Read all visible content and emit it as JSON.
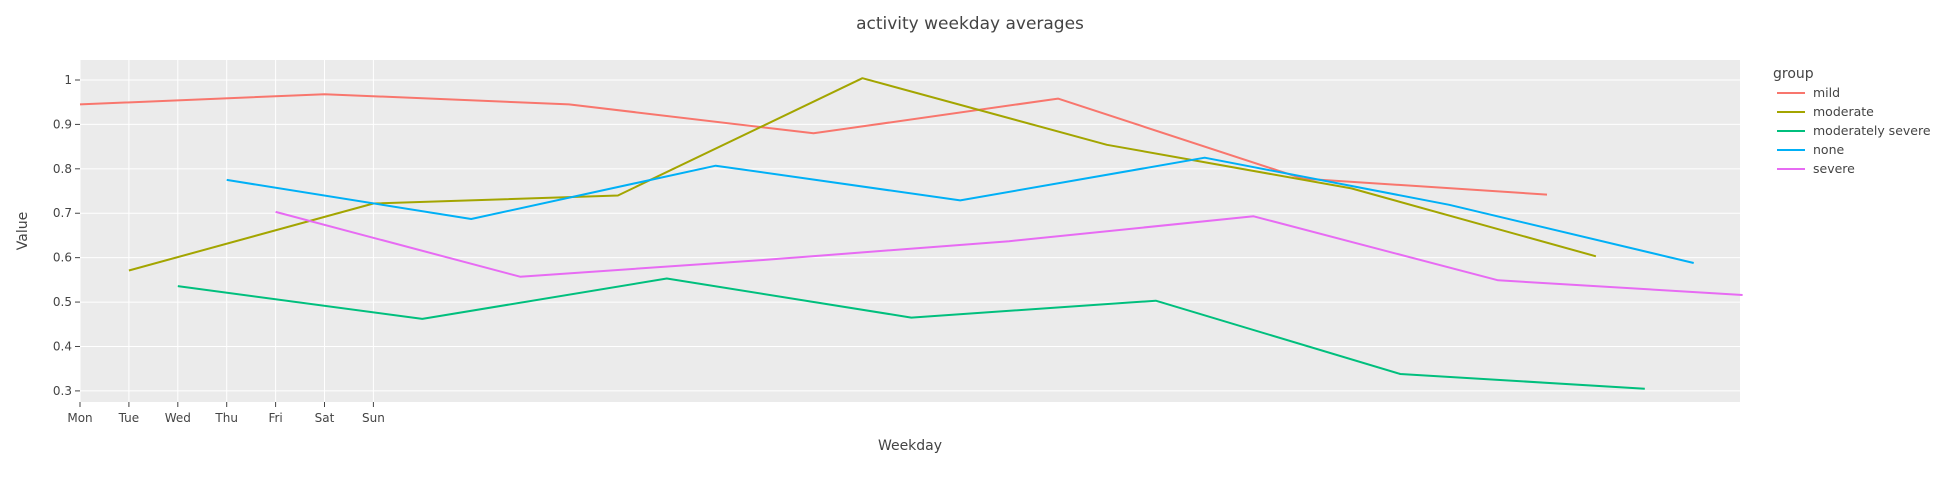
{
  "chart_data": {
    "type": "line",
    "title": "activity weekday averages",
    "xlabel": "Weekday",
    "ylabel": "Value",
    "x_ticks": [
      "Mon",
      "Tue",
      "Wed",
      "Thu",
      "Fri",
      "Sat",
      "Sun"
    ],
    "y_ticks": [
      "0.3",
      "0.4",
      "0.5",
      "0.6",
      "0.7",
      "0.8",
      "0.9",
      "1"
    ],
    "x_range": [
      0,
      34.5
    ],
    "ylim": [
      0.275,
      1.045
    ],
    "grid": true,
    "legend": {
      "title": "group",
      "position": "top-right"
    },
    "series": [
      {
        "name": "mild",
        "color": "#F8766D",
        "x": [
          0,
          5,
          10,
          15,
          20,
          25,
          30
        ],
        "y": [
          0.945,
          0.968,
          0.945,
          0.88,
          0.958,
          0.778,
          0.742
        ]
      },
      {
        "name": "moderate",
        "color": "#A3A500",
        "x": [
          1,
          6,
          11,
          16,
          21,
          26,
          31
        ],
        "y": [
          0.571,
          0.722,
          0.74,
          1.004,
          0.854,
          0.756,
          0.603
        ]
      },
      {
        "name": "moderately severe",
        "color": "#00BF7D",
        "x": [
          2,
          7,
          12,
          17,
          22,
          27,
          32
        ],
        "y": [
          0.536,
          0.462,
          0.553,
          0.465,
          0.503,
          0.338,
          0.305
        ]
      },
      {
        "name": "none",
        "color": "#00B0F6",
        "x": [
          3,
          8,
          13,
          18,
          23,
          28,
          33
        ],
        "y": [
          0.775,
          0.687,
          0.807,
          0.729,
          0.825,
          0.719,
          0.588
        ]
      },
      {
        "name": "severe",
        "color": "#E76BF3",
        "x": [
          4,
          9,
          14,
          19,
          24,
          29,
          34
        ],
        "y": [
          0.703,
          0.557,
          0.595,
          0.637,
          0.693,
          0.549,
          0.516
        ]
      }
    ]
  }
}
